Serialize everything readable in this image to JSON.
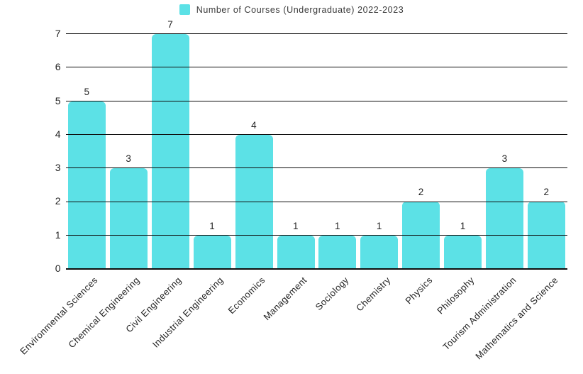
{
  "legend": {
    "label": "Number of Courses (Undergraduate) 2022-2023"
  },
  "chart_data": {
    "type": "bar",
    "title": "Number of Courses (Undergraduate) 2022-2023",
    "categories": [
      "Environmental Sciences",
      "Chemical Engineering",
      "Civil Engineering",
      "Industrial Engineering",
      "Economics",
      "Management",
      "Sociology",
      "Chemistry",
      "Physics",
      "Philosophy",
      "Tourism Administration",
      "Mathematics and Science"
    ],
    "values": [
      5,
      3,
      7,
      1,
      4,
      1,
      1,
      1,
      2,
      1,
      3,
      2
    ],
    "xlabel": "",
    "ylabel": "",
    "ylim": [
      0,
      7
    ],
    "yticks": [
      0,
      1,
      2,
      3,
      4,
      5,
      6,
      7
    ],
    "grid": true,
    "gridlines_over_bars": true,
    "data_labels": true,
    "legend_position": "top",
    "x_tick_rotation": 45
  },
  "colors": {
    "bar": "#5CE1E6",
    "grid": "#0d0d0d",
    "text": "#222222",
    "background": "#ffffff"
  }
}
